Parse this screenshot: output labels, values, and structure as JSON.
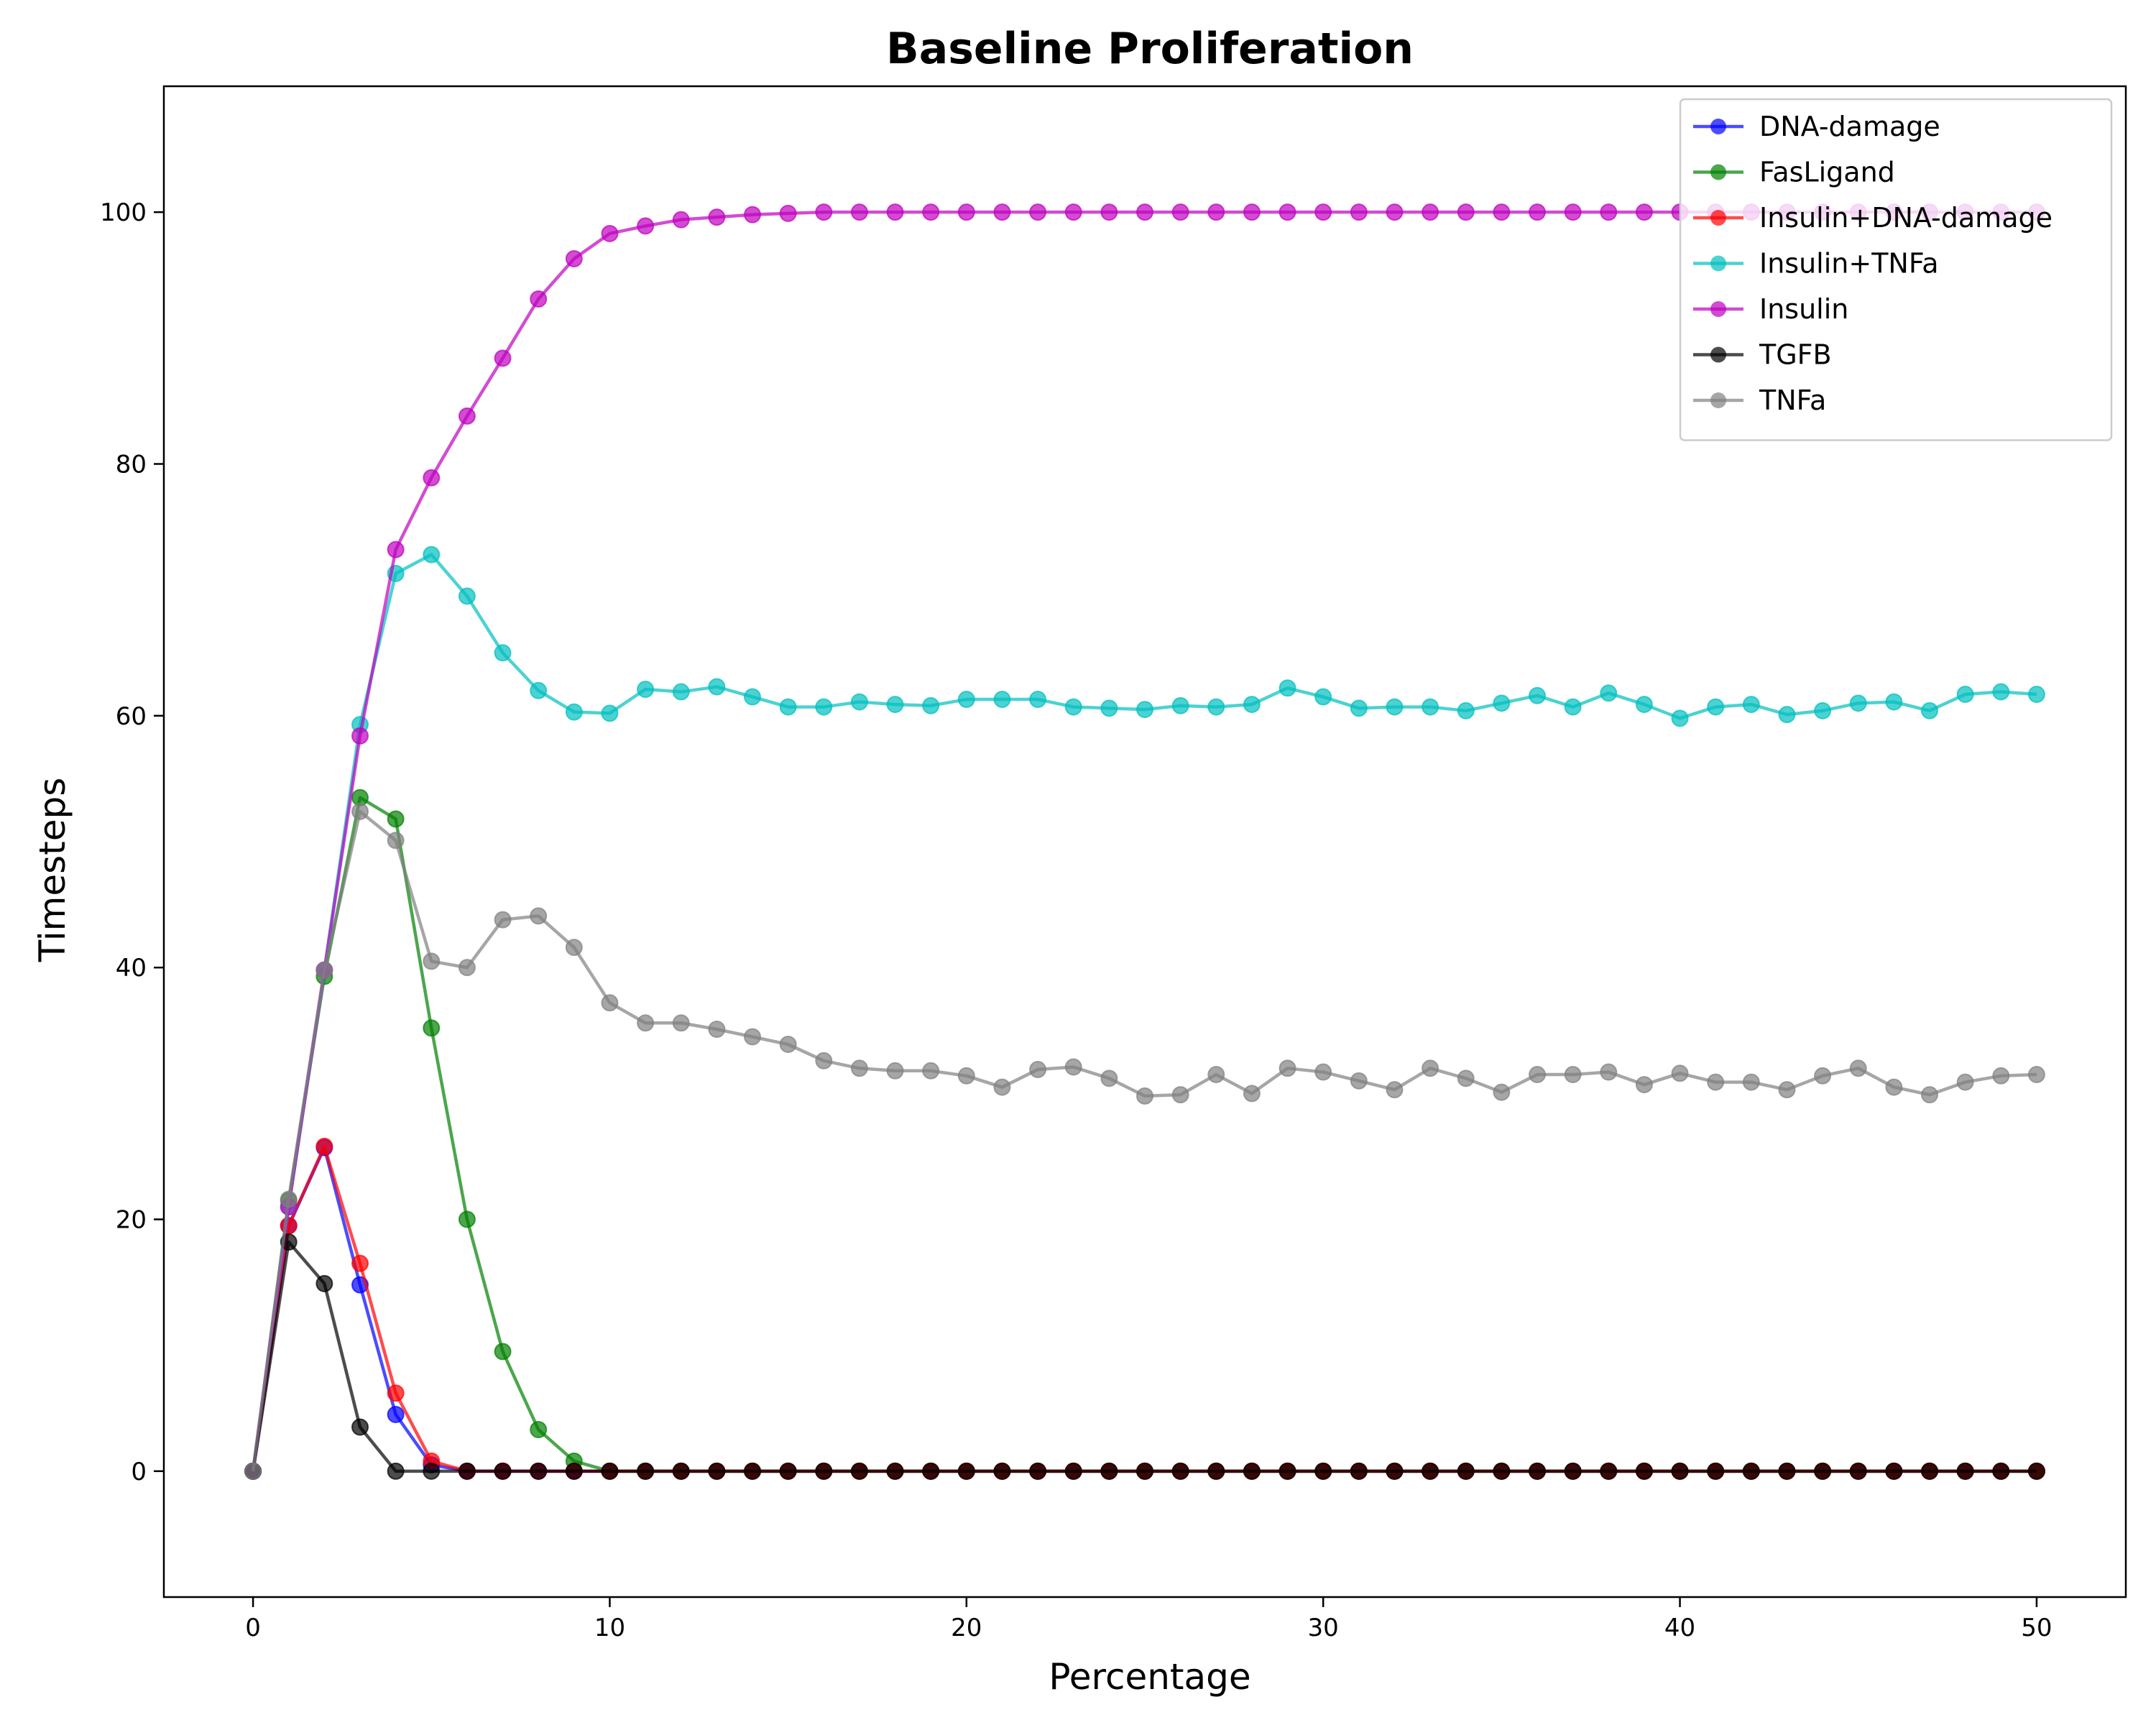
{
  "chart_data": {
    "type": "line",
    "title": "Baseline Proliferation",
    "xlabel": "Percentage",
    "ylabel": "Timesteps",
    "xlim": [
      -2.5,
      52.5
    ],
    "ylim": [
      -10,
      110
    ],
    "xticks": [
      0,
      10,
      20,
      30,
      40,
      50
    ],
    "yticks": [
      0,
      20,
      40,
      60,
      80,
      100
    ],
    "legend_position": "top-right",
    "grid": false,
    "markers": "circle",
    "x": [
      0,
      1,
      2,
      3,
      4,
      5,
      6,
      7,
      8,
      9,
      10,
      11,
      12,
      13,
      14,
      15,
      16,
      17,
      18,
      19,
      20,
      21,
      22,
      23,
      24,
      25,
      26,
      27,
      28,
      29,
      30,
      31,
      32,
      33,
      34,
      35,
      36,
      37,
      38,
      39,
      40,
      41,
      42,
      43,
      44,
      45,
      46,
      47,
      48,
      49,
      50
    ],
    "series": [
      {
        "name": "DNA-damage",
        "color": "#0000ff",
        "values": [
          0,
          19.5,
          25.7,
          14.8,
          4.5,
          0.5,
          0,
          0,
          0,
          0,
          0,
          0,
          0,
          0,
          0,
          0,
          0,
          0,
          0,
          0,
          0,
          0,
          0,
          0,
          0,
          0,
          0,
          0,
          0,
          0,
          0,
          0,
          0,
          0,
          0,
          0,
          0,
          0,
          0,
          0,
          0,
          0,
          0,
          0,
          0,
          0,
          0,
          0,
          0,
          0,
          0
        ]
      },
      {
        "name": "FasLigand",
        "color": "#008000",
        "values": [
          0,
          21.5,
          39.3,
          53.5,
          51.8,
          35.2,
          20.0,
          9.5,
          3.3,
          0.8,
          0,
          0,
          0,
          0,
          0,
          0,
          0,
          0,
          0,
          0,
          0,
          0,
          0,
          0,
          0,
          0,
          0,
          0,
          0,
          0,
          0,
          0,
          0,
          0,
          0,
          0,
          0,
          0,
          0,
          0,
          0,
          0,
          0,
          0,
          0,
          0,
          0,
          0,
          0,
          0,
          0
        ]
      },
      {
        "name": "Insulin+DNA-damage",
        "color": "#ff0000",
        "values": [
          0,
          19.5,
          25.8,
          16.5,
          6.2,
          0.8,
          0,
          0,
          0,
          0,
          0,
          0,
          0,
          0,
          0,
          0,
          0,
          0,
          0,
          0,
          0,
          0,
          0,
          0,
          0,
          0,
          0,
          0,
          0,
          0,
          0,
          0,
          0,
          0,
          0,
          0,
          0,
          0,
          0,
          0,
          0,
          0,
          0,
          0,
          0,
          0,
          0,
          0,
          0,
          0,
          0
        ]
      },
      {
        "name": "Insulin+TNFa",
        "color": "#00bfbf",
        "values": [
          0,
          21.0,
          39.8,
          59.3,
          71.3,
          72.8,
          69.5,
          65.0,
          62.0,
          60.3,
          60.2,
          62.1,
          61.9,
          62.3,
          61.5,
          60.7,
          60.7,
          61.1,
          60.9,
          60.8,
          61.3,
          61.3,
          61.3,
          60.7,
          60.6,
          60.5,
          60.8,
          60.7,
          60.9,
          62.2,
          61.5,
          60.6,
          60.7,
          60.7,
          60.4,
          61.0,
          61.6,
          60.7,
          61.8,
          60.9,
          59.8,
          60.7,
          60.9,
          60.1,
          60.4,
          61.0,
          61.1,
          60.4,
          61.7,
          61.9,
          61.7
        ]
      },
      {
        "name": "Insulin",
        "color": "#bf00bf",
        "values": [
          0,
          21.0,
          39.8,
          58.4,
          73.2,
          78.9,
          83.8,
          88.4,
          93.1,
          96.3,
          98.3,
          98.9,
          99.4,
          99.6,
          99.8,
          99.9,
          100,
          100,
          100,
          100,
          100,
          100,
          100,
          100,
          100,
          100,
          100,
          100,
          100,
          100,
          100,
          100,
          100,
          100,
          100,
          100,
          100,
          100,
          100,
          100,
          100,
          100,
          100,
          100,
          100,
          100,
          100,
          100,
          100,
          100,
          100
        ]
      },
      {
        "name": "TGFB",
        "color": "#000000",
        "values": [
          0,
          18.2,
          14.9,
          3.5,
          0,
          0,
          0,
          0,
          0,
          0,
          0,
          0,
          0,
          0,
          0,
          0,
          0,
          0,
          0,
          0,
          0,
          0,
          0,
          0,
          0,
          0,
          0,
          0,
          0,
          0,
          0,
          0,
          0,
          0,
          0,
          0,
          0,
          0,
          0,
          0,
          0,
          0,
          0,
          0,
          0,
          0,
          0,
          0,
          0,
          0,
          0
        ]
      },
      {
        "name": "TNFa",
        "color": "#808080",
        "values": [
          0,
          21.6,
          39.8,
          52.4,
          50.1,
          40.5,
          40.0,
          43.8,
          44.1,
          41.6,
          37.2,
          35.6,
          35.6,
          35.1,
          34.5,
          33.9,
          32.6,
          32.0,
          31.8,
          31.8,
          31.4,
          30.5,
          31.9,
          32.1,
          31.2,
          29.8,
          29.9,
          31.5,
          30.0,
          32.0,
          31.7,
          31.0,
          30.3,
          32.0,
          31.2,
          30.1,
          31.5,
          31.5,
          31.7,
          30.7,
          31.6,
          30.9,
          30.9,
          30.3,
          31.4,
          32.0,
          30.5,
          29.9,
          30.9,
          31.4,
          31.5
        ]
      }
    ]
  }
}
